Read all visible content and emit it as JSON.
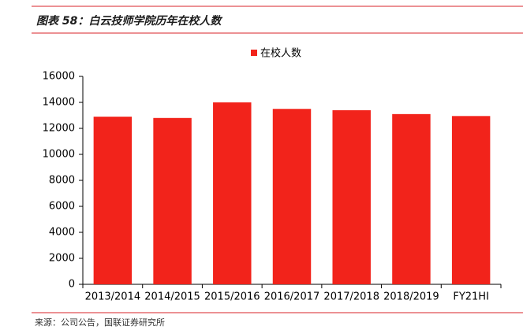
{
  "chart_data": {
    "type": "bar",
    "title": "图表 58：白云技师学院历年在校人数",
    "source": "来源：公司公告，国联证券研究所",
    "categories": [
      "2013/2014",
      "2014/2015",
      "2015/2016",
      "2016/2017",
      "2017/2018",
      "2018/2019",
      "FY21HI"
    ],
    "series": [
      {
        "name": "在校人数",
        "color": "#f2231b",
        "values": [
          12900,
          12800,
          14000,
          13500,
          13400,
          13100,
          12950
        ]
      }
    ],
    "ylim": [
      0,
      16000
    ],
    "yticks": [
      0,
      2000,
      4000,
      6000,
      8000,
      10000,
      12000,
      14000,
      16000
    ]
  }
}
